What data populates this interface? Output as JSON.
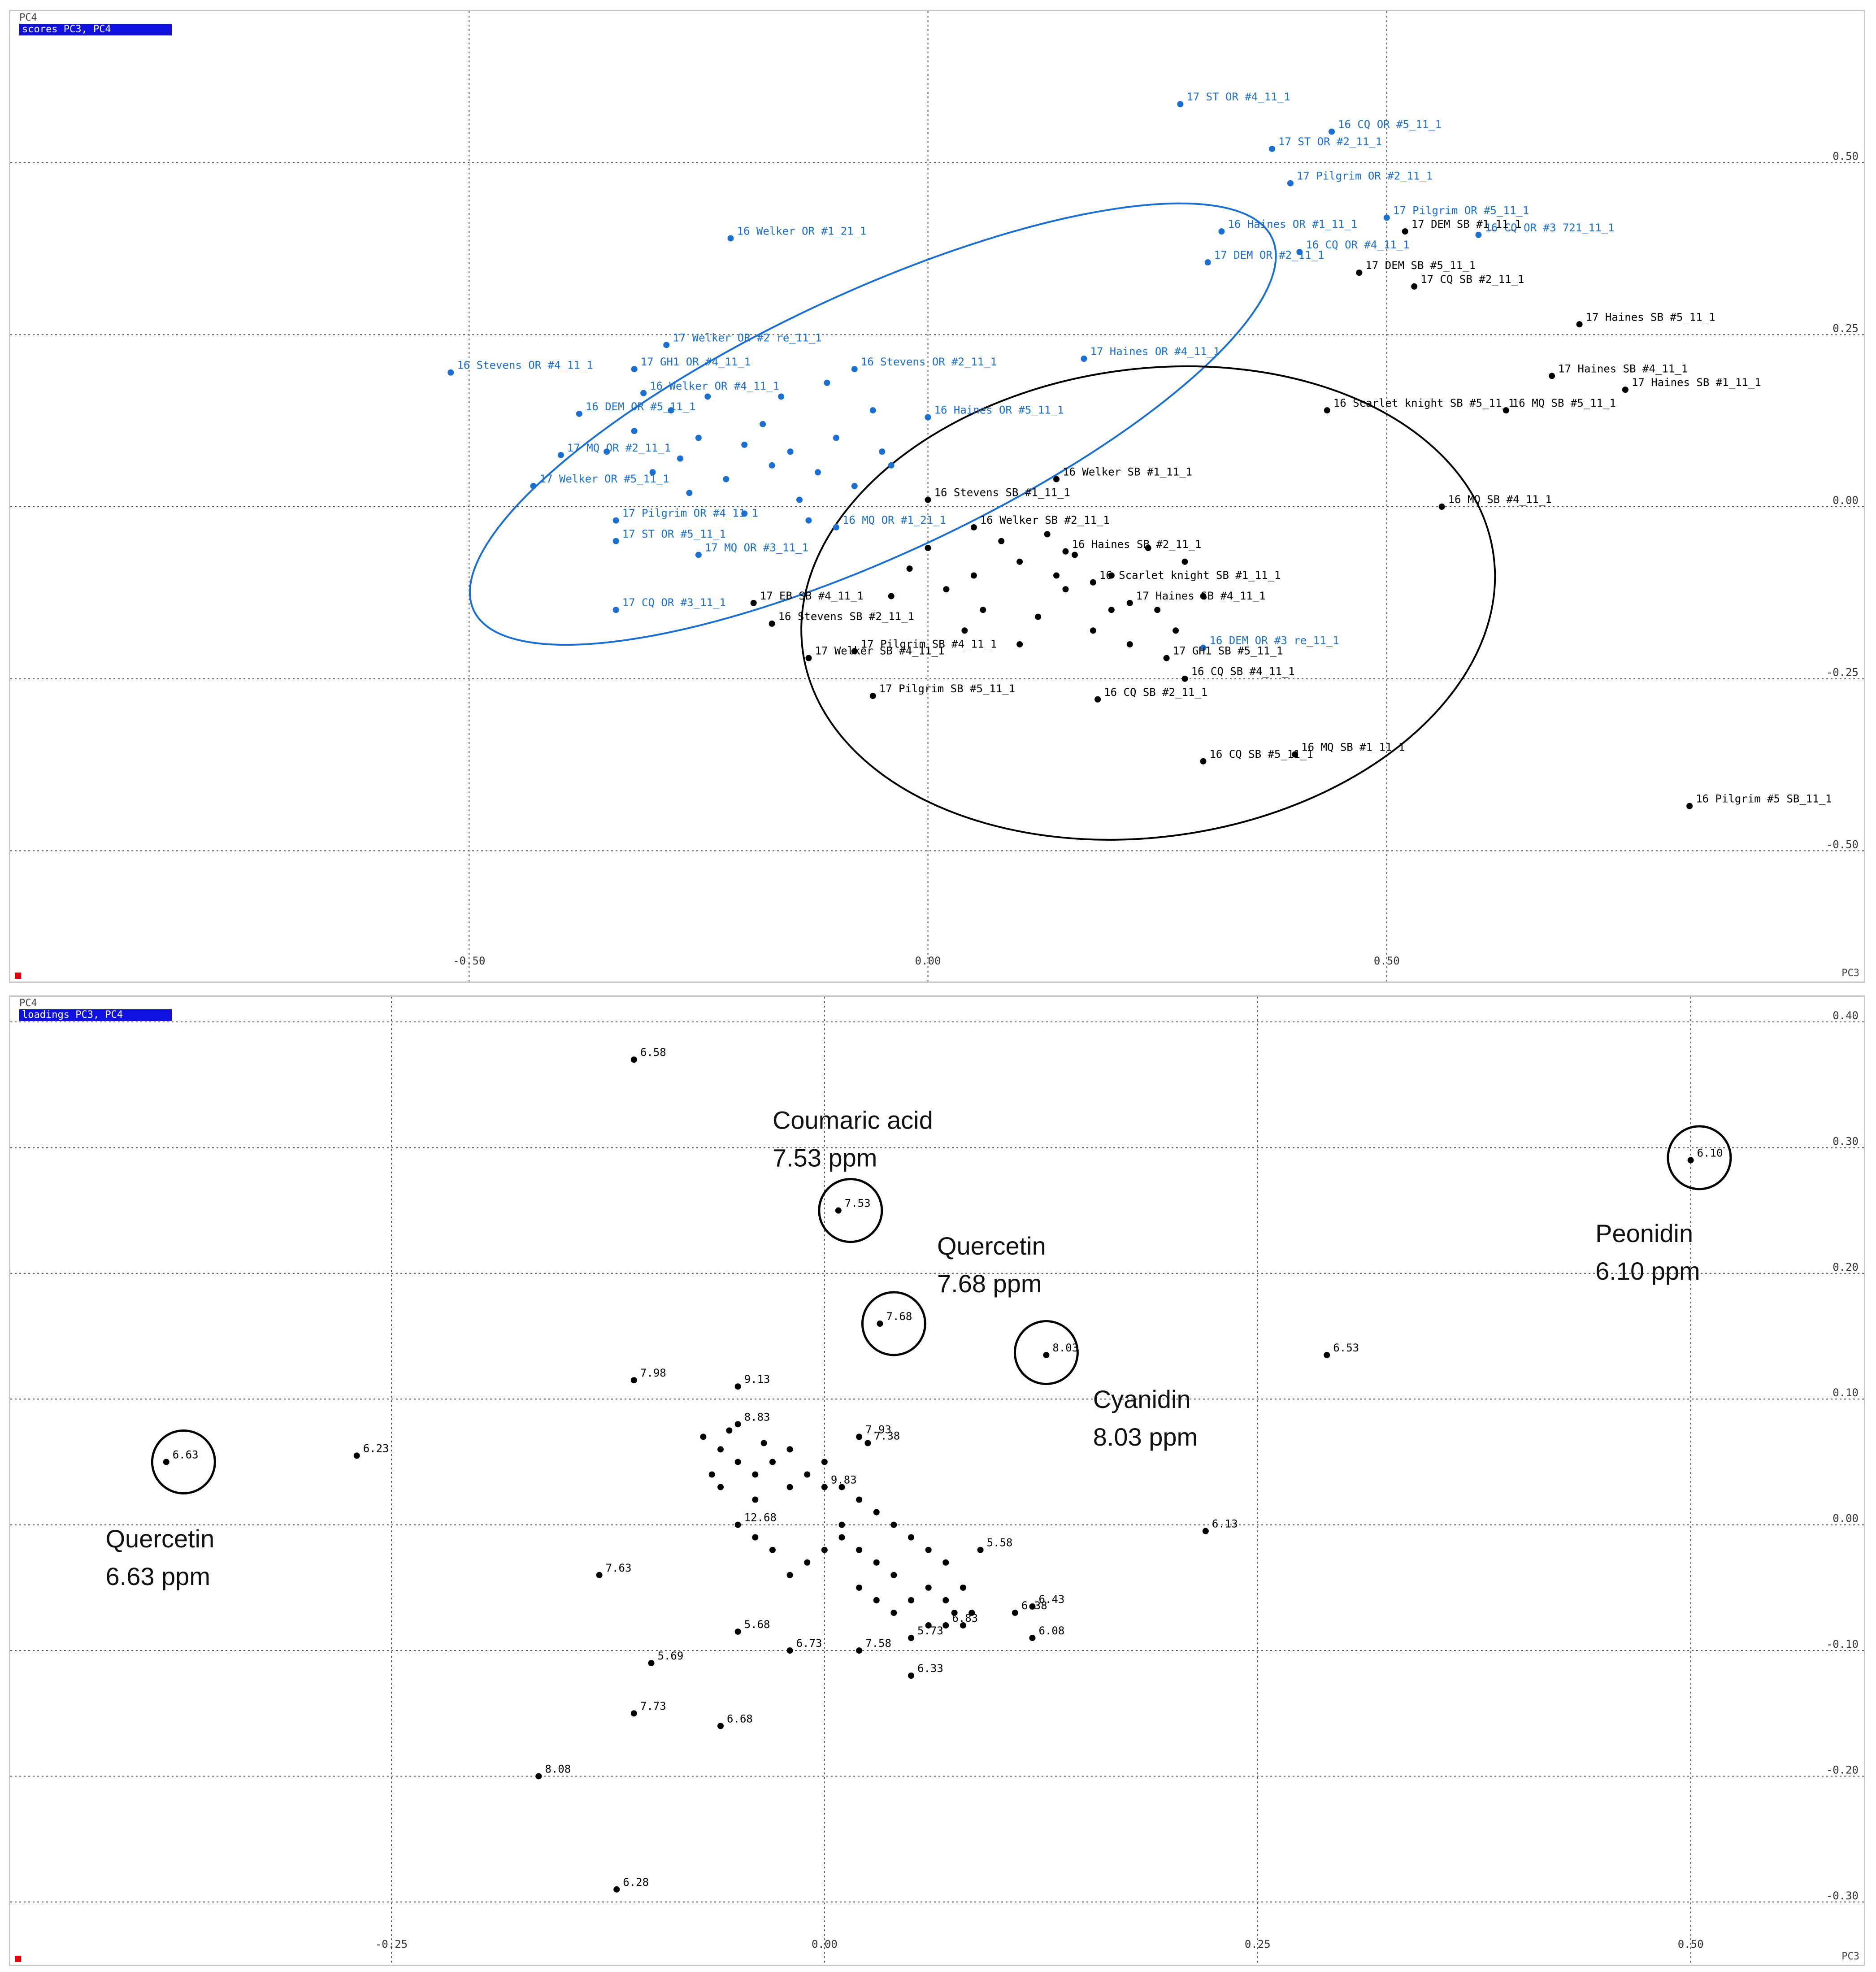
{
  "chart_data": [
    {
      "type": "scatter",
      "panel_label": "scores PC3, PC4",
      "xlabel": "PC3",
      "ylabel": "PC4",
      "xlim": [
        -1.0,
        1.02
      ],
      "ylim": [
        -0.69,
        0.72
      ],
      "xticks": [
        -0.5,
        0.0,
        0.5
      ],
      "xtick_labels": [
        "-0.50",
        "0.00",
        "0.50"
      ],
      "yticks": [
        -0.5,
        -0.25,
        0.0,
        0.25,
        0.5
      ],
      "ytick_labels": [
        "-0.50",
        "-0.25",
        "0.00",
        "0.25",
        "0.50"
      ],
      "grid": true,
      "series": [
        {
          "color": "#1a6fd1",
          "points": [
            {
              "x": 0.275,
              "y": 0.585,
              "label": "17 ST OR #4_11_1"
            },
            {
              "x": 0.44,
              "y": 0.545,
              "label": "16 CQ OR #5_11_1"
            },
            {
              "x": 0.375,
              "y": 0.52,
              "label": "17 ST OR #2_11_1"
            },
            {
              "x": 0.395,
              "y": 0.47,
              "label": "17 Pilgrim OR #2_11_1"
            },
            {
              "x": 0.5,
              "y": 0.42,
              "label": "17 Pilgrim OR #5_11_1"
            },
            {
              "x": 0.32,
              "y": 0.4,
              "label": "16 Haines OR #1_11_1"
            },
            {
              "x": 0.6,
              "y": 0.395,
              "label": "16 CQ OR #3 721_11_1"
            },
            {
              "x": 0.405,
              "y": 0.37,
              "label": "16 CQ OR #4_11_1"
            },
            {
              "x": 0.305,
              "y": 0.355,
              "label": "17 DEM OR #2_11_1"
            },
            {
              "x": -0.215,
              "y": 0.39,
              "label": "16 Welker OR #1_21_1"
            },
            {
              "x": -0.285,
              "y": 0.235,
              "label": "17 Welker OR #2 re_11_1"
            },
            {
              "x": -0.52,
              "y": 0.195,
              "label": "16 Stevens OR #4_11_1"
            },
            {
              "x": -0.32,
              "y": 0.2,
              "label": "17 GH1 OR #4_11_1"
            },
            {
              "x": -0.31,
              "y": 0.165,
              "label": "16 Welker OR #4_11_1"
            },
            {
              "x": -0.38,
              "y": 0.135,
              "label": "16 DEM OR #5_11_1"
            },
            {
              "x": -0.4,
              "y": 0.075,
              "label": "17 MQ OR #2_11_1"
            },
            {
              "x": -0.43,
              "y": 0.03,
              "label": "17 Welker OR #5_11_1"
            },
            {
              "x": -0.34,
              "y": -0.02,
              "label": "17 Pilgrim OR #4_11_1"
            },
            {
              "x": -0.34,
              "y": -0.05,
              "label": "17 ST OR #5_11_1"
            },
            {
              "x": -0.25,
              "y": -0.07,
              "label": "17 MQ OR #3_11_1"
            },
            {
              "x": -0.34,
              "y": -0.15,
              "label": "17 CQ OR #3_11_1"
            },
            {
              "x": 0.17,
              "y": 0.215,
              "label": "17 Haines OR #4_11_1"
            },
            {
              "x": -0.08,
              "y": 0.2,
              "label": "16 Stevens OR #2_11_1"
            },
            {
              "x": 0.0,
              "y": 0.13,
              "label": "16 Haines OR #5_11_1"
            },
            {
              "x": -0.1,
              "y": -0.03,
              "label": "16 MQ OR #1_21_1"
            },
            {
              "x": 0.3,
              "y": -0.205,
              "label": "16 DEM OR #3 re_11_1"
            },
            {
              "x": -0.25,
              "y": 0.1
            },
            {
              "x": -0.2,
              "y": 0.09
            },
            {
              "x": -0.15,
              "y": 0.08
            },
            {
              "x": -0.3,
              "y": 0.05
            },
            {
              "x": -0.22,
              "y": 0.04
            },
            {
              "x": -0.12,
              "y": 0.05
            },
            {
              "x": -0.35,
              "y": 0.08
            },
            {
              "x": -0.18,
              "y": 0.12
            },
            {
              "x": -0.1,
              "y": 0.1
            },
            {
              "x": -0.05,
              "y": 0.08
            },
            {
              "x": -0.26,
              "y": 0.02
            },
            {
              "x": -0.14,
              "y": 0.01
            },
            {
              "x": -0.08,
              "y": 0.03
            },
            {
              "x": -0.2,
              "y": -0.01
            },
            {
              "x": -0.28,
              "y": 0.14
            },
            {
              "x": -0.16,
              "y": 0.16
            },
            {
              "x": -0.06,
              "y": 0.14
            },
            {
              "x": -0.24,
              "y": 0.16
            },
            {
              "x": -0.11,
              "y": 0.18
            },
            {
              "x": -0.32,
              "y": 0.11
            },
            {
              "x": -0.04,
              "y": 0.06
            },
            {
              "x": -0.17,
              "y": 0.06
            },
            {
              "x": -0.27,
              "y": 0.07
            },
            {
              "x": -0.13,
              "y": -0.02
            }
          ]
        },
        {
          "color": "#000000",
          "points": [
            {
              "x": 0.52,
              "y": 0.4,
              "label": "17 DEM SB #1_11_1"
            },
            {
              "x": 0.47,
              "y": 0.34,
              "label": "17 DEM SB #5_11_1"
            },
            {
              "x": 0.53,
              "y": 0.32,
              "label": "17 CQ SB #2_11_1"
            },
            {
              "x": 0.71,
              "y": 0.265,
              "label": "17 Haines SB #5_11_1"
            },
            {
              "x": 0.68,
              "y": 0.19,
              "label": "17 Haines SB #4_11_1"
            },
            {
              "x": 0.76,
              "y": 0.17,
              "label": "17 Haines SB #1_11_1"
            },
            {
              "x": 0.435,
              "y": 0.14,
              "label": "16 Scarlet knight SB #5_11_1"
            },
            {
              "x": 0.63,
              "y": 0.14,
              "label": "16 MQ SB #5_11_1"
            },
            {
              "x": 0.56,
              "y": 0.0,
              "label": "16 MQ SB #4_11_1"
            },
            {
              "x": 0.14,
              "y": 0.04,
              "label": "16 Welker SB #1_11_1"
            },
            {
              "x": 0.0,
              "y": 0.01,
              "label": "16 Stevens SB #1_11_1"
            },
            {
              "x": 0.05,
              "y": -0.03,
              "label": "16 Welker SB #2_11_1"
            },
            {
              "x": 0.15,
              "y": -0.065,
              "label": "16 Haines SB #2_11_1"
            },
            {
              "x": 0.18,
              "y": -0.11,
              "label": "16 Scarlet knight SB #1_11_1"
            },
            {
              "x": 0.22,
              "y": -0.14,
              "label": "17 Haines SB #4_11_1"
            },
            {
              "x": -0.19,
              "y": -0.14,
              "label": "17 EB SB #4_11_1"
            },
            {
              "x": -0.17,
              "y": -0.17,
              "label": "16 Stevens SB #2_11_1"
            },
            {
              "x": -0.08,
              "y": -0.21,
              "label": "17 Pilgrim SB #4_11_1"
            },
            {
              "x": -0.13,
              "y": -0.22,
              "label": "17 Welker SB #4_11_1"
            },
            {
              "x": -0.06,
              "y": -0.275,
              "label": "17 Pilgrim SB #5_11_1"
            },
            {
              "x": 0.26,
              "y": -0.22,
              "label": "17 GH1 SB #5_11_1"
            },
            {
              "x": 0.28,
              "y": -0.25,
              "label": "16 CQ SB #4_11_1"
            },
            {
              "x": 0.185,
              "y": -0.28,
              "label": "16 CQ SB #2_11_1"
            },
            {
              "x": 0.3,
              "y": -0.37,
              "label": "16 CQ SB #5_11_1"
            },
            {
              "x": 0.4,
              "y": -0.36,
              "label": "16 MQ SB #1_11_1"
            },
            {
              "x": 0.83,
              "y": -0.435,
              "label": "16 Pilgrim #5 SB_11_1"
            },
            {
              "x": 0.0,
              "y": -0.06
            },
            {
              "x": 0.05,
              "y": -0.1
            },
            {
              "x": 0.1,
              "y": -0.08
            },
            {
              "x": 0.15,
              "y": -0.12
            },
            {
              "x": 0.2,
              "y": -0.1
            },
            {
              "x": 0.25,
              "y": -0.15
            },
            {
              "x": 0.12,
              "y": -0.16
            },
            {
              "x": 0.06,
              "y": -0.15
            },
            {
              "x": 0.18,
              "y": -0.18
            },
            {
              "x": 0.22,
              "y": -0.2
            },
            {
              "x": 0.1,
              "y": -0.2
            },
            {
              "x": 0.02,
              "y": -0.12
            },
            {
              "x": -0.02,
              "y": -0.09
            },
            {
              "x": 0.08,
              "y": -0.05
            },
            {
              "x": 0.13,
              "y": -0.04
            },
            {
              "x": 0.28,
              "y": -0.08
            },
            {
              "x": 0.3,
              "y": -0.13
            },
            {
              "x": 0.16,
              "y": -0.07
            },
            {
              "x": 0.04,
              "y": -0.18
            },
            {
              "x": 0.24,
              "y": -0.06
            },
            {
              "x": 0.2,
              "y": -0.15
            },
            {
              "x": -0.04,
              "y": -0.13
            },
            {
              "x": 0.14,
              "y": -0.1
            },
            {
              "x": 0.27,
              "y": -0.18
            }
          ]
        }
      ],
      "ellipses": [
        {
          "color": "#1a6fd1",
          "cx": -0.06,
          "cy": 0.12,
          "rx": 0.48,
          "ry": 0.19,
          "angle_deg": 25
        },
        {
          "color": "#000000",
          "cx": 0.24,
          "cy": -0.14,
          "rx": 0.38,
          "ry": 0.34,
          "angle_deg": 8
        }
      ]
    },
    {
      "type": "scatter",
      "panel_label": "loadings PC3, PC4",
      "xlabel": "PC3",
      "ylabel": "PC4",
      "xlim": [
        -0.47,
        0.6
      ],
      "ylim": [
        -0.35,
        0.42
      ],
      "xticks": [
        -0.25,
        0.0,
        0.25,
        0.5
      ],
      "xtick_labels": [
        "-0.25",
        "0.00",
        "0.25",
        "0.50"
      ],
      "yticks": [
        -0.3,
        -0.2,
        -0.1,
        0.0,
        0.1,
        0.2,
        0.3,
        0.4
      ],
      "ytick_labels": [
        "-0.30",
        "-0.20",
        "-0.10",
        "0.00",
        "0.10",
        "0.20",
        "0.30",
        "0.40"
      ],
      "grid": true,
      "points": [
        {
          "x": -0.11,
          "y": 0.37,
          "label": "6.58"
        },
        {
          "x": 0.008,
          "y": 0.25,
          "label": "7.53"
        },
        {
          "x": 0.032,
          "y": 0.16,
          "label": "7.68"
        },
        {
          "x": 0.128,
          "y": 0.135,
          "label": "8.03"
        },
        {
          "x": 0.5,
          "y": 0.29,
          "label": "6.10"
        },
        {
          "x": 0.29,
          "y": 0.135,
          "label": "6.53"
        },
        {
          "x": -0.11,
          "y": 0.115,
          "label": "7.98"
        },
        {
          "x": -0.38,
          "y": 0.05,
          "label": "6.63"
        },
        {
          "x": -0.27,
          "y": 0.055,
          "label": "6.23"
        },
        {
          "x": -0.05,
          "y": 0.11,
          "label": "9.13"
        },
        {
          "x": 0.22,
          "y": -0.005,
          "label": "6.13"
        },
        {
          "x": -0.13,
          "y": -0.04,
          "label": "7.63"
        },
        {
          "x": 0.09,
          "y": -0.02,
          "label": "5.58"
        },
        {
          "x": 0.12,
          "y": -0.065,
          "label": "6.43"
        },
        {
          "x": 0.11,
          "y": -0.07,
          "label": "6.38"
        },
        {
          "x": 0.12,
          "y": -0.09,
          "label": "6.08"
        },
        {
          "x": -0.05,
          "y": -0.085,
          "label": "5.68"
        },
        {
          "x": -0.02,
          "y": -0.1,
          "label": "6.73"
        },
        {
          "x": 0.05,
          "y": -0.12,
          "label": "6.33"
        },
        {
          "x": -0.1,
          "y": -0.11,
          "label": "5.69"
        },
        {
          "x": -0.11,
          "y": -0.15,
          "label": "7.73"
        },
        {
          "x": -0.06,
          "y": -0.16,
          "label": "6.68"
        },
        {
          "x": -0.165,
          "y": -0.2,
          "label": "8.08"
        },
        {
          "x": -0.12,
          "y": -0.29,
          "label": "6.28"
        },
        {
          "x": -0.05,
          "y": 0.08,
          "label": "8.83"
        },
        {
          "x": 0.02,
          "y": 0.07,
          "label": "7.93"
        },
        {
          "x": 0.025,
          "y": 0.065,
          "label": "7.38"
        },
        {
          "x": -0.05,
          "y": 0.0,
          "label": "12.68"
        },
        {
          "x": 0.0,
          "y": 0.03,
          "label": "9.83"
        },
        {
          "x": 0.05,
          "y": -0.09,
          "label": "5.73"
        },
        {
          "x": 0.07,
          "y": -0.08,
          "label": "6.83"
        },
        {
          "x": 0.02,
          "y": -0.1,
          "label": "7.58"
        },
        {
          "x": -0.07,
          "y": 0.07
        },
        {
          "x": -0.06,
          "y": 0.06
        },
        {
          "x": -0.05,
          "y": 0.05
        },
        {
          "x": -0.04,
          "y": 0.04
        },
        {
          "x": -0.03,
          "y": 0.05
        },
        {
          "x": -0.02,
          "y": 0.06
        },
        {
          "x": -0.06,
          "y": 0.03
        },
        {
          "x": -0.04,
          "y": 0.02
        },
        {
          "x": -0.02,
          "y": 0.03
        },
        {
          "x": -0.01,
          "y": 0.04
        },
        {
          "x": 0.0,
          "y": 0.05
        },
        {
          "x": 0.01,
          "y": 0.03
        },
        {
          "x": 0.02,
          "y": 0.02
        },
        {
          "x": 0.03,
          "y": 0.01
        },
        {
          "x": 0.04,
          "y": 0.0
        },
        {
          "x": 0.05,
          "y": -0.01
        },
        {
          "x": 0.06,
          "y": -0.02
        },
        {
          "x": 0.07,
          "y": -0.03
        },
        {
          "x": 0.08,
          "y": -0.05
        },
        {
          "x": 0.085,
          "y": -0.07
        },
        {
          "x": 0.08,
          "y": -0.08
        },
        {
          "x": 0.06,
          "y": -0.08
        },
        {
          "x": 0.05,
          "y": -0.06
        },
        {
          "x": 0.04,
          "y": -0.04
        },
        {
          "x": 0.03,
          "y": -0.03
        },
        {
          "x": 0.02,
          "y": -0.02
        },
        {
          "x": 0.01,
          "y": -0.01
        },
        {
          "x": 0.0,
          "y": -0.02
        },
        {
          "x": -0.01,
          "y": -0.03
        },
        {
          "x": -0.02,
          "y": -0.04
        },
        {
          "x": -0.03,
          "y": -0.02
        },
        {
          "x": -0.04,
          "y": -0.01
        },
        {
          "x": 0.03,
          "y": -0.06
        },
        {
          "x": 0.04,
          "y": -0.07
        },
        {
          "x": 0.06,
          "y": -0.05
        },
        {
          "x": 0.07,
          "y": -0.06
        },
        {
          "x": -0.065,
          "y": 0.04
        },
        {
          "x": -0.055,
          "y": 0.075
        },
        {
          "x": -0.035,
          "y": 0.065
        },
        {
          "x": 0.01,
          "y": 0.0
        },
        {
          "x": 0.02,
          "y": -0.05
        },
        {
          "x": 0.075,
          "y": -0.07
        }
      ],
      "annotations": [
        {
          "lines": [
            "Coumaric acid",
            "7.53 ppm"
          ],
          "x": -0.03,
          "y": 0.315
        },
        {
          "lines": [
            "Quercetin",
            "7.68 ppm"
          ],
          "x": 0.065,
          "y": 0.215
        },
        {
          "lines": [
            "Cyanidin",
            "8.03 ppm"
          ],
          "x": 0.155,
          "y": 0.093
        },
        {
          "lines": [
            "Peonidin",
            "6.10 ppm"
          ],
          "x": 0.445,
          "y": 0.225
        },
        {
          "lines": [
            "Quercetin",
            "6.63 ppm"
          ],
          "x": -0.415,
          "y": -0.018
        }
      ],
      "highlights": [
        {
          "x": 0.015,
          "y": 0.25
        },
        {
          "x": 0.04,
          "y": 0.16
        },
        {
          "x": 0.128,
          "y": 0.137
        },
        {
          "x": 0.505,
          "y": 0.292
        },
        {
          "x": -0.37,
          "y": 0.05
        }
      ]
    }
  ]
}
